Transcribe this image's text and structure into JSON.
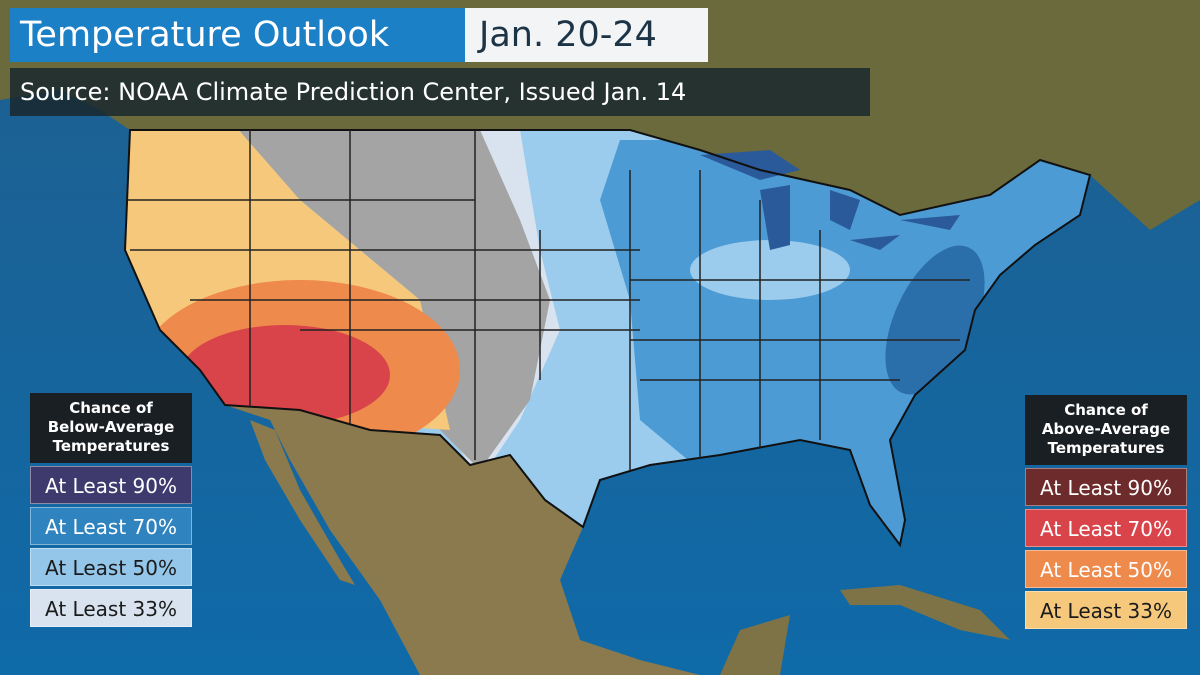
{
  "header": {
    "title": "Temperature Outlook",
    "dates": "Jan. 20-24",
    "source": "Source: NOAA Climate Prediction Center, Issued Jan. 14"
  },
  "legend_below": {
    "title_lines": [
      "Chance of",
      "Below-Average",
      "Temperatures"
    ],
    "items": [
      {
        "label": "At Least 90%",
        "color": "#3f3a6e",
        "text_color": "#ffffff"
      },
      {
        "label": "At Least 70%",
        "color": "#2f83bf",
        "text_color": "#ffffff"
      },
      {
        "label": "At Least 50%",
        "color": "#93c6e8",
        "text_color": "#1b1b1b"
      },
      {
        "label": "At Least 33%",
        "color": "#d8e3ef",
        "text_color": "#1b1b1b"
      }
    ]
  },
  "legend_above": {
    "title_lines": [
      "Chance of",
      "Above-Average",
      "Temperatures"
    ],
    "items": [
      {
        "label": "At Least 90%",
        "color": "#6e2b2b",
        "text_color": "#ffffff"
      },
      {
        "label": "At Least 70%",
        "color": "#d9444b",
        "text_color": "#ffffff"
      },
      {
        "label": "At Least 50%",
        "color": "#ee8a4b",
        "text_color": "#ffffff"
      },
      {
        "label": "At Least 33%",
        "color": "#f6c87c",
        "text_color": "#1b1b1b"
      }
    ]
  }
}
